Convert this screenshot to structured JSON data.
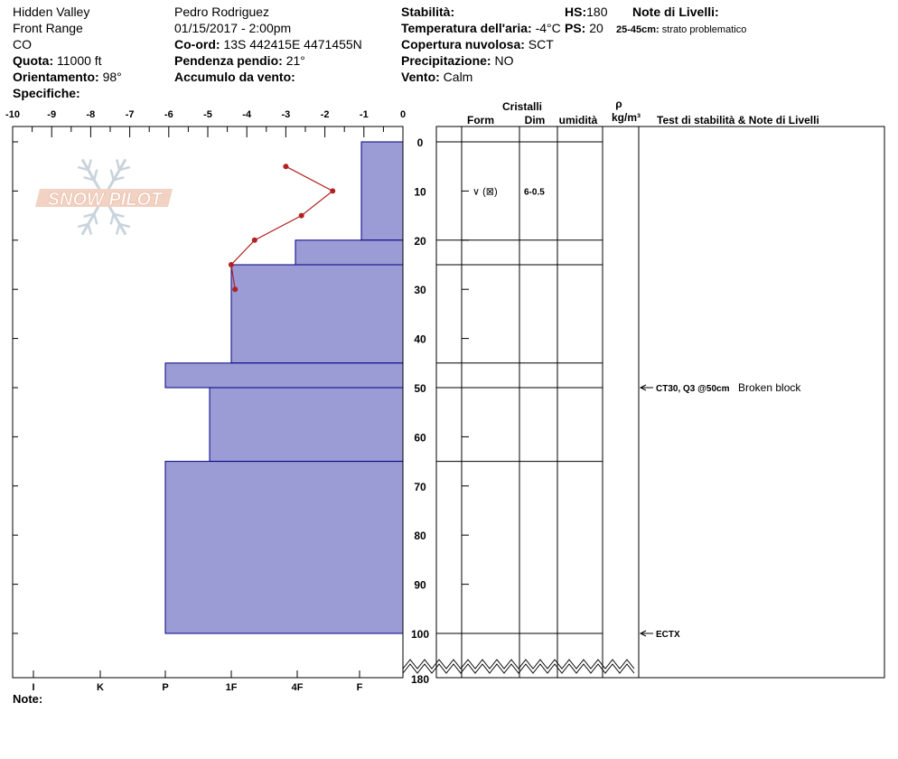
{
  "header": {
    "location": "Hidden Valley",
    "range": "Front Range",
    "state": "CO",
    "elevation_label": "Quota:",
    "elevation_value": "11000 ft",
    "aspect_label": "Orientamento:",
    "aspect_value": "98°",
    "specifics_label": "Specifiche:",
    "observer": "Pedro Rodriguez",
    "datetime": "01/15/2017 - 2:00pm",
    "coord_label": "Co-ord:",
    "coord_value": "13S 442415E 4471455N",
    "slope_label": "Pendenza pendio:",
    "slope_value": "21°",
    "wind_loading_label": "Accumulo da vento:",
    "wind_loading_value": "",
    "stability_label": "Stabilità:",
    "stability_value": "",
    "air_temp_label": "Temperatura dell'aria:",
    "air_temp_value": "-4°C",
    "cloud_label": "Copertura nuvolosa:",
    "cloud_value": "SCT",
    "precip_label": "Precipitazione:",
    "precip_value": "NO",
    "wind_label": "Vento:",
    "wind_value": "Calm",
    "hs_label": "HS:",
    "hs_value": "180",
    "ps_label": "PS:",
    "ps_value": "20",
    "layer_notes_label": "Note di Livelli:",
    "layer_note_range": "25-45cm:",
    "layer_note_text": "strato problematico"
  },
  "footer": {
    "notes_label": "Note:"
  },
  "logo": {
    "text": "SNOW PILOT"
  },
  "colors": {
    "hardness_fill": "#9b9bd6",
    "hardness_stroke": "#000080",
    "temp_line": "#b22222"
  },
  "table": {
    "crystals_header": "Cristalli",
    "form_header": "Form",
    "size_header": "Dim",
    "moisture_header": "umidità",
    "density_header_symbol": "ρ",
    "density_header_unit": "kg/m³",
    "tests_header": "Test di stabilità & Note di Livelli"
  },
  "chart_data": {
    "type": "snow_profile",
    "temperature_axis": {
      "ticks": [
        "-10",
        "-9",
        "-8",
        "-7",
        "-6",
        "-5",
        "-4",
        "-3",
        "-2",
        "-1",
        "0"
      ],
      "range": [
        -10,
        0
      ]
    },
    "hardness_axis": {
      "labels": [
        "I",
        "K",
        "P",
        "1F",
        "4F",
        "F"
      ]
    },
    "depth_axis": {
      "ticks": [
        "0",
        "10",
        "20",
        "30",
        "40",
        "50",
        "60",
        "70",
        "80",
        "90",
        "100"
      ],
      "bottom_label": "180",
      "range": [
        0,
        100
      ],
      "break_at": 100,
      "total": 180
    },
    "temperature_profile": [
      {
        "depth": 5,
        "temp": -3.0
      },
      {
        "depth": 10,
        "temp": -1.8
      },
      {
        "depth": 15,
        "temp": -2.6
      },
      {
        "depth": 20,
        "temp": -3.8
      },
      {
        "depth": 25,
        "temp": -4.4
      },
      {
        "depth": 30,
        "temp": -4.3
      }
    ],
    "hardness_layers": [
      {
        "top": 0,
        "bottom": 20,
        "hardness": "F"
      },
      {
        "top": 20,
        "bottom": 25,
        "hardness": "4F-"
      },
      {
        "top": 25,
        "bottom": 45,
        "hardness": "1F"
      },
      {
        "top": 45,
        "bottom": 50,
        "hardness": "P"
      },
      {
        "top": 50,
        "bottom": 65,
        "hardness": "1F+"
      },
      {
        "top": 65,
        "bottom": 100,
        "hardness": "P"
      }
    ],
    "layer_boundaries": [
      0,
      20,
      25,
      45,
      50,
      65,
      100
    ],
    "crystal_rows": [
      {
        "depth": 10,
        "form": "∨ (⊠)",
        "size": "6-0.5"
      }
    ],
    "stability_tests": [
      {
        "depth": 50,
        "code": "CT30, Q3 @50cm",
        "note": "Broken block"
      },
      {
        "depth": 100,
        "code": "ECTX",
        "note": ""
      }
    ]
  }
}
